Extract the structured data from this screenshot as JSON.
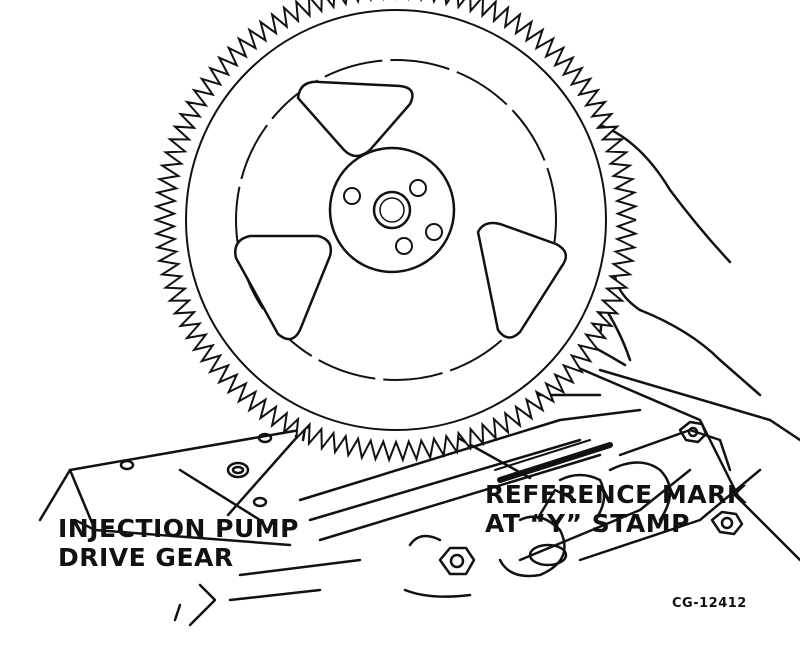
{
  "labels": {
    "gear": [
      "INJECTION PUMP",
      "DRIVE GEAR"
    ],
    "mark": [
      "REFERENCE MARK",
      "AT “Y” STAMP"
    ],
    "figure_id": "CG-12412"
  },
  "colors": {
    "ink": "#111111",
    "paper": "#ffffff"
  },
  "gear": {
    "tooth_count": 110
  }
}
